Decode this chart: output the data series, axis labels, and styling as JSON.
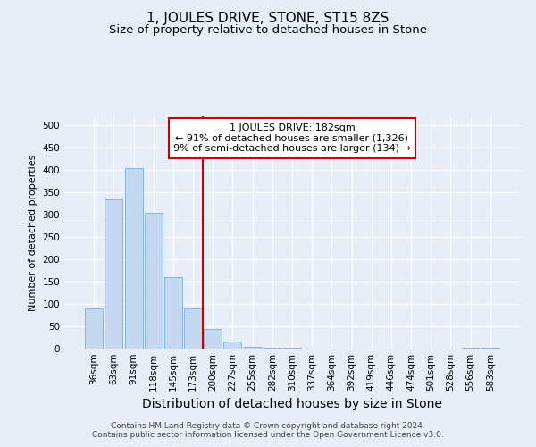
{
  "title": "1, JOULES DRIVE, STONE, ST15 8ZS",
  "subtitle": "Size of property relative to detached houses in Stone",
  "xlabel": "Distribution of detached houses by size in Stone",
  "ylabel": "Number of detached properties",
  "bin_labels": [
    "36sqm",
    "63sqm",
    "91sqm",
    "118sqm",
    "145sqm",
    "173sqm",
    "200sqm",
    "227sqm",
    "255sqm",
    "282sqm",
    "310sqm",
    "337sqm",
    "364sqm",
    "392sqm",
    "419sqm",
    "446sqm",
    "474sqm",
    "501sqm",
    "528sqm",
    "556sqm",
    "583sqm"
  ],
  "bar_values": [
    90,
    335,
    405,
    305,
    160,
    90,
    45,
    17,
    5,
    3,
    2,
    0,
    0,
    0,
    0,
    0,
    0,
    0,
    0,
    3,
    2
  ],
  "bar_color": "#c5d8ef",
  "bar_edge_color": "#7aadda",
  "vline_x_index": 5.5,
  "vline_color": "#cc0000",
  "annotation_line1": "1 JOULES DRIVE: 182sqm",
  "annotation_line2": "← 91% of detached houses are smaller (1,326)",
  "annotation_line3": "9% of semi-detached houses are larger (134) →",
  "annotation_box_facecolor": "#ffffff",
  "annotation_box_edgecolor": "#cc0000",
  "ylim": [
    0,
    520
  ],
  "yticks": [
    0,
    50,
    100,
    150,
    200,
    250,
    300,
    350,
    400,
    450,
    500
  ],
  "bg_color": "#e8eef7",
  "plot_bg_color": "#e8eef7",
  "grid_color": "#ffffff",
  "title_fontsize": 11,
  "subtitle_fontsize": 9.5,
  "xlabel_fontsize": 10,
  "ylabel_fontsize": 8,
  "tick_fontsize": 7.5,
  "annotation_fontsize": 8,
  "footer_fontsize": 6.5,
  "footer_line1": "Contains HM Land Registry data © Crown copyright and database right 2024.",
  "footer_line2": "Contains public sector information licensed under the Open Government Licence v3.0."
}
